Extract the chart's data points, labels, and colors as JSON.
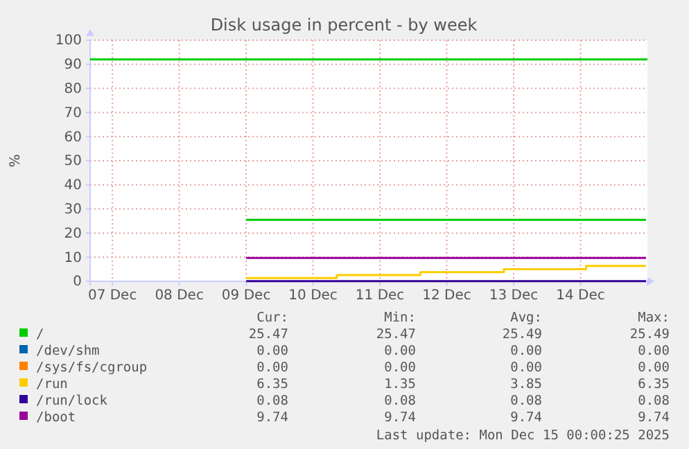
{
  "chart_data": {
    "type": "step",
    "title": "Disk usage in percent - by week",
    "ylabel": "%",
    "xlim": [
      "2025-12-06T16:00",
      "2025-12-15T00:00"
    ],
    "xticks": [
      {
        "value": "2025-12-07T00:00",
        "label": "07 Dec"
      },
      {
        "value": "2025-12-08T00:00",
        "label": "08 Dec"
      },
      {
        "value": "2025-12-09T00:00",
        "label": "09 Dec"
      },
      {
        "value": "2025-12-10T00:00",
        "label": "10 Dec"
      },
      {
        "value": "2025-12-11T00:00",
        "label": "11 Dec"
      },
      {
        "value": "2025-12-12T00:00",
        "label": "12 Dec"
      },
      {
        "value": "2025-12-13T00:00",
        "label": "13 Dec"
      },
      {
        "value": "2025-12-14T00:00",
        "label": "14 Dec"
      }
    ],
    "ylim": [
      0,
      100
    ],
    "yticks": [
      0,
      10,
      20,
      30,
      40,
      50,
      60,
      70,
      80,
      90,
      100
    ],
    "grid": true,
    "legend": "bottom left",
    "ref_lines": [
      {
        "axis": "y",
        "value": 92,
        "color": "#00cc00"
      }
    ],
    "series": [
      {
        "name": "/",
        "color": "#00cc00",
        "x": [
          "2025-12-09T00:00",
          "2025-12-14T23:30"
        ],
        "values": [
          25.5,
          25.5
        ]
      },
      {
        "name": "/dev/shm",
        "color": "#0066b3"
      },
      {
        "name": "/sys/fs/cgroup",
        "color": "#ff8000"
      },
      {
        "name": "/run",
        "color": "#ffcc00",
        "x": [
          "2025-12-09T00:00",
          "2025-12-10T08:30",
          "2025-12-11T14:30",
          "2025-12-12T20:30",
          "2025-12-14T02:00",
          "2025-12-14T23:30"
        ],
        "values": [
          1.4,
          2.6,
          3.8,
          5.0,
          6.4,
          6.4
        ]
      },
      {
        "name": "/run/lock",
        "color": "#330099",
        "x": [
          "2025-12-09T00:00",
          "2025-12-14T23:30"
        ],
        "values": [
          0.1,
          0.1
        ]
      },
      {
        "name": "/boot",
        "color": "#990099",
        "x": [
          "2025-12-09T00:00",
          "2025-12-14T23:30"
        ],
        "values": [
          9.7,
          9.7
        ]
      }
    ],
    "annotations": [
      "Cur:",
      "Min:",
      "Avg:",
      "Max:",
      "25.47",
      "25.47",
      "25.49",
      "25.49",
      "0.00",
      "0.00",
      "0.00",
      "0.00",
      "0.00",
      "0.00",
      "0.00",
      "0.00",
      "6.35",
      "1.35",
      "3.85",
      "6.35",
      "0.08",
      "0.08",
      "0.08",
      "0.08",
      "9.74",
      "9.74",
      "9.74",
      "9.74",
      "Last update: Mon Dec 15 00:00:25 2025"
    ]
  }
}
